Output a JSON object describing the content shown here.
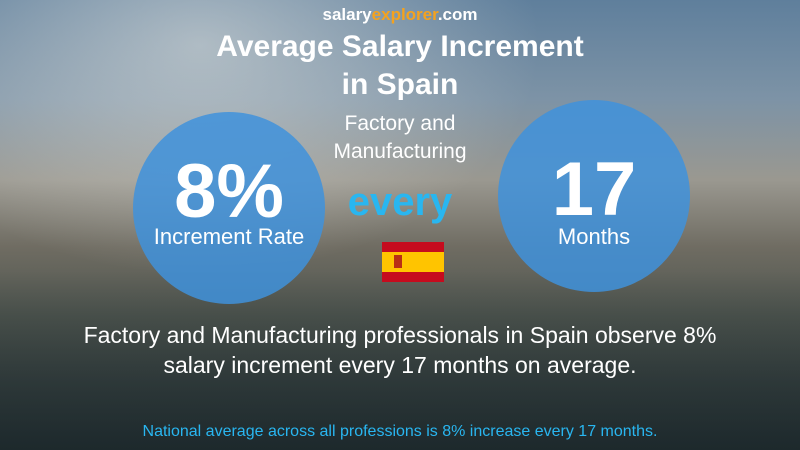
{
  "header": {
    "logo_salary": "salary",
    "logo_explorer": "explorer",
    "logo_com": ".com",
    "title_line1": "Average Salary Increment",
    "title_line2": "in Spain",
    "subtitle_line1": "Factory and",
    "subtitle_line2": "Manufacturing"
  },
  "left_circle": {
    "value": "8%",
    "label": "Increment Rate"
  },
  "connector": "every",
  "right_circle": {
    "value": "17",
    "label": "Months"
  },
  "description_line1": "Factory and Manufacturing professionals in Spain observe 8%",
  "description_line2": "salary increment every 17 months on average.",
  "footer": "National average across all professions is 8% increase every 17 months."
}
